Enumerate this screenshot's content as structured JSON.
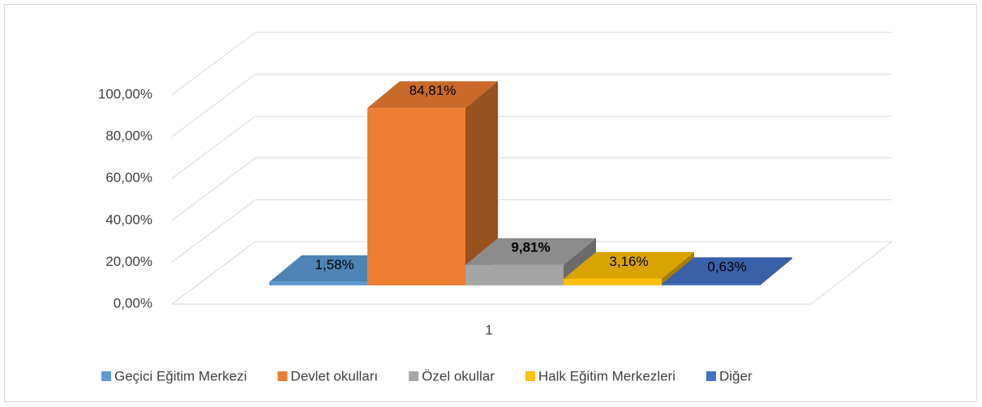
{
  "chart_data": {
    "type": "bar3d",
    "categories": [
      "1"
    ],
    "series": [
      {
        "name": "Geçici Eğitim Merkezi",
        "color": "#5b9bd5",
        "values": [
          1.58
        ],
        "value_labels": [
          "1,58%"
        ]
      },
      {
        "name": "Devlet okulları",
        "color": "#ed7d31",
        "values": [
          84.81
        ],
        "value_labels": [
          "84,81%"
        ]
      },
      {
        "name": "Özel okullar",
        "color": "#a5a5a5",
        "values": [
          9.81
        ],
        "value_labels": [
          "9,81%"
        ]
      },
      {
        "name": "Halk Eğitim Merkezleri",
        "color": "#ffc000",
        "values": [
          3.16
        ],
        "value_labels": [
          "3,16%"
        ]
      },
      {
        "name": "Diğer",
        "color": "#4472c4",
        "values": [
          0.63
        ],
        "value_labels": [
          "0,63%"
        ]
      }
    ],
    "ylim": [
      0,
      100
    ],
    "yticks": [
      {
        "value": 0,
        "label": "0,00%"
      },
      {
        "value": 20,
        "label": "20,00%"
      },
      {
        "value": 40,
        "label": "40,00%"
      },
      {
        "value": 60,
        "label": "60,00%"
      },
      {
        "value": 80,
        "label": "80,00%"
      },
      {
        "value": 100,
        "label": "100,00%"
      }
    ],
    "grid": true,
    "legend": "bottom"
  }
}
